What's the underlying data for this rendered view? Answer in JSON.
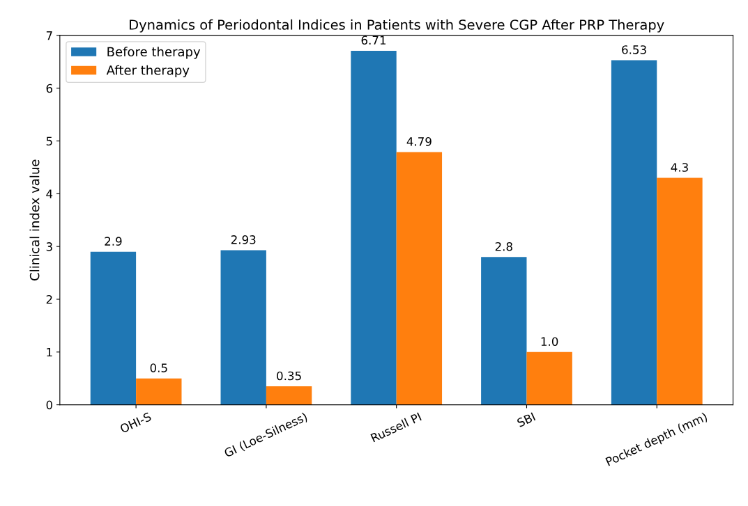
{
  "chart_data": {
    "type": "bar",
    "title": "Dynamics of Periodontal Indices in Patients with Severe CGP After PRP Therapy",
    "ylabel": "Clinical index value",
    "categories": [
      "OHI-S",
      "GI (Loe-Silness)",
      "Russell PI",
      "SBI",
      "Pocket depth (mm)"
    ],
    "series": [
      {
        "name": "Before therapy",
        "color": "#1f77b4",
        "values": [
          2.9,
          2.93,
          6.71,
          2.8,
          6.53
        ],
        "value_labels": [
          "2.9",
          "2.93",
          "6.71",
          "2.8",
          "6.53"
        ]
      },
      {
        "name": "After therapy",
        "color": "#ff7f0e",
        "values": [
          0.5,
          0.35,
          4.79,
          1.0,
          4.3
        ],
        "value_labels": [
          "0.5",
          "0.35",
          "4.79",
          "1.0",
          "4.3"
        ]
      }
    ],
    "ylim": [
      0,
      7
    ],
    "yticks": [
      0,
      1,
      2,
      3,
      4,
      5,
      6,
      7
    ],
    "legend": "top left",
    "grid": false
  }
}
